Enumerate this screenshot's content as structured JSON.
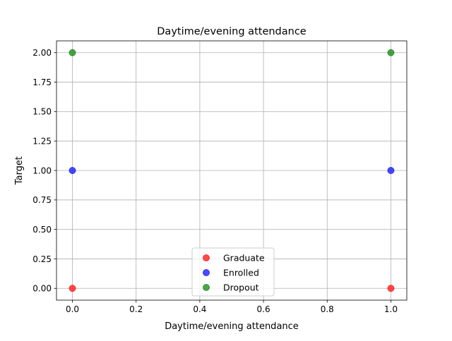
{
  "chart_data": {
    "type": "scatter",
    "title": "Daytime/evening attendance",
    "xlabel": "Daytime/evening attendance",
    "ylabel": "Target",
    "xlim": [
      -0.05,
      1.05
    ],
    "ylim": [
      -0.1,
      2.1
    ],
    "xticks": [
      0.0,
      0.2,
      0.4,
      0.6,
      0.8,
      1.0
    ],
    "yticks": [
      0.0,
      0.25,
      0.5,
      0.75,
      1.0,
      1.25,
      1.5,
      1.75,
      2.0
    ],
    "xtick_labels": [
      "0.0",
      "0.2",
      "0.4",
      "0.6",
      "0.8",
      "1.0"
    ],
    "ytick_labels": [
      "0.00",
      "0.25",
      "0.50",
      "0.75",
      "1.00",
      "1.25",
      "1.50",
      "1.75",
      "2.00"
    ],
    "grid": true,
    "legend_position": "bottom-center",
    "series": [
      {
        "name": "Graduate",
        "color": "#ff0000",
        "points": [
          {
            "x": 0,
            "y": 0
          },
          {
            "x": 1,
            "y": 0
          }
        ]
      },
      {
        "name": "Enrolled",
        "color": "#0000ff",
        "points": [
          {
            "x": 0,
            "y": 1
          },
          {
            "x": 1,
            "y": 1
          }
        ]
      },
      {
        "name": "Dropout",
        "color": "#008000",
        "points": [
          {
            "x": 0,
            "y": 2
          },
          {
            "x": 1,
            "y": 2
          }
        ]
      }
    ]
  }
}
